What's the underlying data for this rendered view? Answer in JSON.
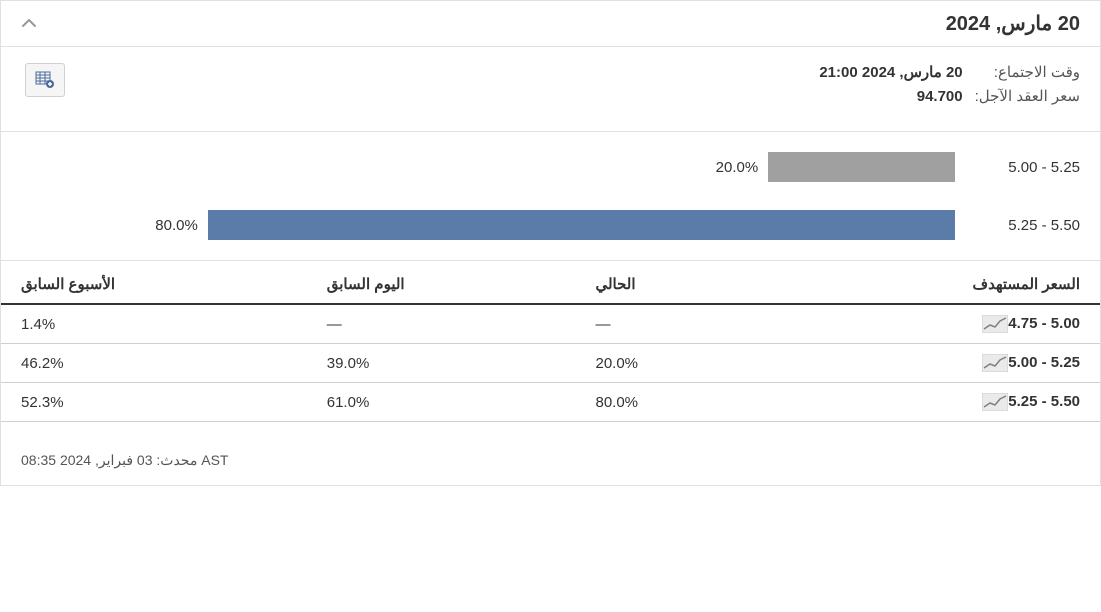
{
  "header": {
    "title": "20 مارس, 2024"
  },
  "meta": {
    "meeting_time_label": "وقت الاجتماع:",
    "meeting_time_value": "20 مارس, 2024 21:00",
    "futures_price_label": "سعر العقد الآجل:",
    "futures_price_value": "94.700"
  },
  "chart": {
    "type": "bar",
    "bars": [
      {
        "label": "5.00 - 5.25",
        "pct": 20.0,
        "pct_label": "20.0%",
        "color": "#a0a0a0"
      },
      {
        "label": "5.25 - 5.50",
        "pct": 80.0,
        "pct_label": "80.0%",
        "color": "#5b7ba8"
      }
    ],
    "track_max_pct": 100
  },
  "table": {
    "columns": {
      "target": "السعر المستهدف",
      "current": "الحالي",
      "prev_day": "اليوم السابق",
      "prev_week": "الأسبوع السابق"
    },
    "rows": [
      {
        "range": "4.75 - 5.00",
        "current": "—",
        "prev_day": "—",
        "prev_week": "1.4%"
      },
      {
        "range": "5.00 - 5.25",
        "current": "20.0%",
        "prev_day": "39.0%",
        "prev_week": "46.2%"
      },
      {
        "range": "5.25 - 5.50",
        "current": "80.0%",
        "prev_day": "61.0%",
        "prev_week": "52.3%"
      }
    ]
  },
  "footer": {
    "updated": "محدث: 03 فبراير, 2024 08:35 AST"
  },
  "colors": {
    "bar_secondary": "#a0a0a0",
    "bar_primary": "#5b7ba8",
    "border": "#e0e0e0",
    "text": "#333333"
  }
}
